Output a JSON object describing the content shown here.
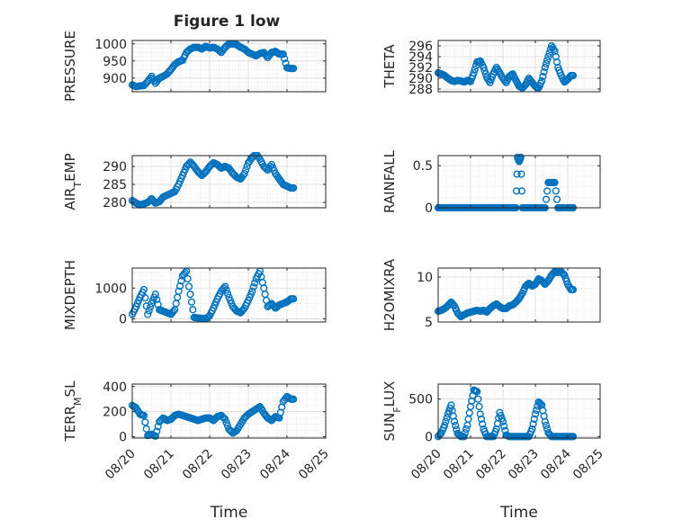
{
  "figure": {
    "title": "Figure 1 low"
  },
  "colors": {
    "marker": "#0072BD",
    "axis": "#262626",
    "grid": "#d9d9d9",
    "background": "#ffffff"
  },
  "chart_data": [
    {
      "type": "scatter",
      "marker": "circle-open",
      "grid": true,
      "title": "Figure 1 low",
      "xlabel": "",
      "ylabel": "PRESSURE",
      "xlim": [
        "08/20",
        "08/25"
      ],
      "ylim": [
        860,
        1010
      ],
      "yticks": [
        900,
        950,
        1000
      ],
      "xticks": [],
      "show_xticklabels": false,
      "x": [
        0.0,
        0.1,
        0.2,
        0.3,
        0.4,
        0.5,
        0.6,
        0.7,
        0.8,
        0.9,
        1.0,
        1.1,
        1.2,
        1.3,
        1.4,
        1.5,
        1.6,
        1.7,
        1.8,
        1.9,
        2.0,
        2.1,
        2.2,
        2.3,
        2.4,
        2.5,
        2.6,
        2.7,
        2.8,
        2.9,
        3.0,
        3.1,
        3.2,
        3.3,
        3.4,
        3.5,
        3.6,
        3.7,
        3.8,
        3.9,
        4.0,
        4.1
      ],
      "values": [
        880,
        875,
        877,
        878,
        890,
        905,
        885,
        900,
        905,
        912,
        925,
        940,
        948,
        952,
        975,
        985,
        990,
        990,
        985,
        993,
        988,
        990,
        985,
        975,
        990,
        1000,
        1000,
        998,
        990,
        985,
        975,
        970,
        965,
        972,
        975,
        960,
        975,
        978,
        970,
        970,
        930,
        928
      ]
    },
    {
      "type": "scatter",
      "marker": "circle-open",
      "grid": true,
      "xlabel": "",
      "ylabel": "THETA",
      "xlim": [
        "08/20",
        "08/25"
      ],
      "ylim": [
        287.5,
        297
      ],
      "yticks": [
        288,
        290,
        292,
        294,
        296
      ],
      "xticks": [],
      "show_xticklabels": false,
      "x": [
        0.0,
        0.1,
        0.2,
        0.3,
        0.4,
        0.5,
        0.6,
        0.7,
        0.8,
        0.9,
        1.0,
        1.1,
        1.2,
        1.3,
        1.4,
        1.5,
        1.6,
        1.7,
        1.8,
        1.9,
        2.0,
        2.1,
        2.2,
        2.3,
        2.4,
        2.5,
        2.6,
        2.7,
        2.8,
        2.9,
        3.0,
        3.1,
        3.2,
        3.3,
        3.4,
        3.5,
        3.6,
        3.7,
        3.8,
        3.9,
        4.0,
        4.1
      ],
      "values": [
        291,
        290.8,
        290.5,
        290,
        289.6,
        289.4,
        289.6,
        289.5,
        289.3,
        289.6,
        289.4,
        291,
        293,
        293.2,
        292,
        290.2,
        289.2,
        290.8,
        292,
        291,
        290,
        289.2,
        290.4,
        290.8,
        289.6,
        288.5,
        288.2,
        288.8,
        290,
        289.2,
        288.5,
        288.2,
        289.5,
        292,
        294,
        296,
        295,
        292,
        290.5,
        289.3,
        289.8,
        290.5
      ]
    },
    {
      "type": "scatter",
      "marker": "circle-open",
      "grid": true,
      "xlabel": "",
      "ylabel": "AIR_TEMP",
      "xlim": [
        "08/20",
        "08/25"
      ],
      "ylim": [
        278.5,
        293
      ],
      "yticks": [
        280,
        285,
        290
      ],
      "xticks": [],
      "show_xticklabels": false,
      "x": [
        0.0,
        0.1,
        0.2,
        0.3,
        0.4,
        0.5,
        0.6,
        0.7,
        0.8,
        0.9,
        1.0,
        1.1,
        1.2,
        1.3,
        1.4,
        1.5,
        1.6,
        1.7,
        1.8,
        1.9,
        2.0,
        2.1,
        2.2,
        2.3,
        2.4,
        2.5,
        2.6,
        2.7,
        2.8,
        2.9,
        3.0,
        3.1,
        3.2,
        3.3,
        3.4,
        3.5,
        3.6,
        3.7,
        3.8,
        3.9,
        4.0,
        4.1
      ],
      "values": [
        280.5,
        279.8,
        279.3,
        279.6,
        280,
        281,
        279.8,
        280.2,
        281.5,
        282,
        282.5,
        283,
        285,
        287.5,
        290,
        291.2,
        290,
        288.5,
        287.5,
        288.5,
        290,
        291,
        290.5,
        289.5,
        290,
        289.5,
        288,
        287,
        286.5,
        288,
        291,
        292.5,
        293.5,
        292,
        290,
        289,
        290.5,
        288,
        286.5,
        285,
        284.5,
        284
      ]
    },
    {
      "type": "scatter",
      "marker": "circle-open",
      "grid": true,
      "xlabel": "",
      "ylabel": "RAINFALL",
      "xlim": [
        "08/20",
        "08/25"
      ],
      "ylim": [
        0,
        0.62
      ],
      "yticks": [
        0,
        0.5
      ],
      "xticks": [],
      "show_xticklabels": false,
      "x": [
        0.0,
        0.1,
        0.2,
        0.3,
        0.4,
        0.5,
        0.6,
        0.7,
        0.8,
        0.9,
        1.0,
        1.1,
        1.2,
        1.3,
        1.4,
        1.5,
        1.6,
        1.7,
        1.8,
        1.9,
        2.0,
        2.1,
        2.2,
        2.3,
        2.4,
        2.45,
        2.5,
        2.55,
        2.6,
        2.7,
        2.8,
        2.9,
        3.0,
        3.1,
        3.2,
        3.3,
        3.4,
        3.45,
        3.5,
        3.55,
        3.6,
        3.7,
        3.8,
        3.9,
        4.0,
        4.1
      ],
      "values": [
        0,
        0,
        0,
        0,
        0,
        0,
        0,
        0,
        0,
        0,
        0,
        0,
        0,
        0,
        0,
        0,
        0,
        0,
        0,
        0,
        0,
        0,
        0,
        0,
        0,
        0.6,
        0.55,
        0.6,
        0,
        0,
        0,
        0,
        0,
        0,
        0,
        0,
        0.3,
        0.3,
        0.3,
        0.3,
        0.3,
        0,
        0,
        0,
        0,
        0
      ]
    },
    {
      "type": "scatter",
      "marker": "circle-open",
      "grid": true,
      "xlabel": "",
      "ylabel": "MIXDEPTH",
      "xlim": [
        "08/20",
        "08/25"
      ],
      "ylim": [
        -100,
        1650
      ],
      "yticks": [
        0,
        1000
      ],
      "xticks": [],
      "show_xticklabels": false,
      "x": [
        0.0,
        0.1,
        0.2,
        0.3,
        0.4,
        0.5,
        0.6,
        0.7,
        0.8,
        0.9,
        1.0,
        1.1,
        1.2,
        1.3,
        1.4,
        1.5,
        1.6,
        1.7,
        1.8,
        1.9,
        2.0,
        2.1,
        2.2,
        2.3,
        2.4,
        2.5,
        2.6,
        2.7,
        2.8,
        2.9,
        3.0,
        3.1,
        3.2,
        3.3,
        3.4,
        3.5,
        3.6,
        3.7,
        3.8,
        3.9,
        4.0,
        4.1
      ],
      "values": [
        150,
        400,
        700,
        950,
        150,
        500,
        800,
        300,
        250,
        200,
        150,
        300,
        900,
        1400,
        1550,
        800,
        50,
        30,
        20,
        10,
        100,
        350,
        650,
        900,
        1050,
        700,
        400,
        250,
        200,
        350,
        600,
        900,
        1300,
        1550,
        1000,
        400,
        500,
        350,
        450,
        500,
        550,
        650
      ]
    },
    {
      "type": "scatter",
      "marker": "circle-open",
      "grid": true,
      "xlabel": "",
      "ylabel": "H2OMIXRA",
      "xlim": [
        "08/20",
        "08/25"
      ],
      "ylim": [
        5,
        11
      ],
      "yticks": [
        5,
        10
      ],
      "xticks": [],
      "show_xticklabels": false,
      "x": [
        0.0,
        0.1,
        0.2,
        0.3,
        0.4,
        0.5,
        0.6,
        0.7,
        0.8,
        0.9,
        1.0,
        1.1,
        1.2,
        1.3,
        1.4,
        1.5,
        1.6,
        1.7,
        1.8,
        1.9,
        2.0,
        2.1,
        2.2,
        2.3,
        2.4,
        2.5,
        2.6,
        2.7,
        2.8,
        2.9,
        3.0,
        3.1,
        3.2,
        3.3,
        3.4,
        3.5,
        3.6,
        3.7,
        3.8,
        3.9,
        4.0,
        4.1
      ],
      "values": [
        6.2,
        6.3,
        6.5,
        6.8,
        7.2,
        6.8,
        6.0,
        5.6,
        5.8,
        6.0,
        6.1,
        6.2,
        6.3,
        6.2,
        6.3,
        6.1,
        6.5,
        6.8,
        7.0,
        6.7,
        6.5,
        6.5,
        6.8,
        6.9,
        7.2,
        7.6,
        8.2,
        9.0,
        9.3,
        9.0,
        9.2,
        9.8,
        9.6,
        9.2,
        9.6,
        10.2,
        10.6,
        10.5,
        10.6,
        10.2,
        9.2,
        8.6
      ]
    },
    {
      "type": "scatter",
      "marker": "circle-open",
      "grid": true,
      "xlabel": "Time",
      "ylabel": "TERR_MSL",
      "xlim": [
        "08/20",
        "08/25"
      ],
      "ylim": [
        -10,
        420
      ],
      "yticks": [
        0,
        200,
        400
      ],
      "xticks": [
        "08/20",
        "08/21",
        "08/22",
        "08/23",
        "08/24",
        "08/25"
      ],
      "show_xticklabels": true,
      "x": [
        0.0,
        0.1,
        0.2,
        0.3,
        0.4,
        0.5,
        0.6,
        0.7,
        0.8,
        0.9,
        1.0,
        1.1,
        1.2,
        1.3,
        1.4,
        1.5,
        1.6,
        1.7,
        1.8,
        1.9,
        2.0,
        2.1,
        2.2,
        2.3,
        2.4,
        2.5,
        2.6,
        2.7,
        2.8,
        2.9,
        3.0,
        3.1,
        3.2,
        3.3,
        3.4,
        3.5,
        3.6,
        3.7,
        3.8,
        3.9,
        4.0,
        4.1
      ],
      "values": [
        250,
        230,
        180,
        170,
        10,
        20,
        5,
        120,
        150,
        130,
        140,
        170,
        180,
        170,
        160,
        150,
        140,
        130,
        140,
        150,
        150,
        130,
        160,
        170,
        140,
        60,
        30,
        50,
        100,
        150,
        180,
        200,
        220,
        240,
        190,
        150,
        130,
        160,
        150,
        280,
        320,
        300
      ]
    },
    {
      "type": "scatter",
      "marker": "circle-open",
      "grid": true,
      "xlabel": "Time",
      "ylabel": "SUN_FLUX",
      "xlim": [
        "08/20",
        "08/25"
      ],
      "ylim": [
        -20,
        700
      ],
      "yticks": [
        0,
        500
      ],
      "xticks": [
        "08/20",
        "08/21",
        "08/22",
        "08/23",
        "08/24",
        "08/25"
      ],
      "show_xticklabels": true,
      "x": [
        0.0,
        0.1,
        0.2,
        0.3,
        0.4,
        0.5,
        0.6,
        0.7,
        0.8,
        0.9,
        1.0,
        1.1,
        1.2,
        1.3,
        1.4,
        1.5,
        1.6,
        1.7,
        1.8,
        1.9,
        2.0,
        2.1,
        2.2,
        2.3,
        2.4,
        2.5,
        2.6,
        2.7,
        2.8,
        2.9,
        3.0,
        3.1,
        3.2,
        3.3,
        3.4,
        3.5,
        3.6,
        3.7,
        3.8,
        3.9,
        4.0,
        4.1
      ],
      "values": [
        0,
        50,
        150,
        300,
        420,
        200,
        40,
        0,
        0,
        150,
        400,
        620,
        600,
        300,
        100,
        0,
        0,
        0,
        100,
        320,
        200,
        20,
        0,
        0,
        0,
        0,
        0,
        0,
        0,
        100,
        300,
        460,
        420,
        200,
        50,
        0,
        0,
        0,
        0,
        0,
        0,
        0
      ]
    }
  ]
}
